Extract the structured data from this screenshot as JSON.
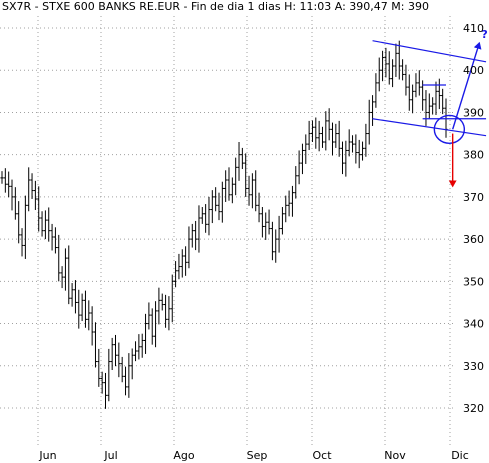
{
  "header": "SX7R - STXE 600 BANKS RE.EUR - Fin de dia 1 dias  H: 11:03  A: 390,47  M: 390",
  "annotation": {
    "question_mark": "?",
    "up_color": "#1a1ae6",
    "down_color": "#e60000",
    "line_color": "#1a1ae6"
  },
  "chart_data": {
    "type": "ohlc",
    "title": "SX7R - STXE 600 BANKS RE.EUR - Fin de dia 1 dias",
    "header_values": {
      "H": "11:03",
      "A": "390,47",
      "M": "390"
    },
    "ylim": [
      313,
      412
    ],
    "y_ticks": [
      "320",
      "330",
      "340",
      "350",
      "360",
      "370",
      "380",
      "390",
      "400",
      "410"
    ],
    "x_ticks": [
      "Jun",
      "Jul",
      "Ago",
      "Sep",
      "Oct",
      "Nov",
      "Dic"
    ],
    "grid": true,
    "series": [
      {
        "closes": [
          374.5,
          373.0,
          372.5,
          370.0,
          366.0,
          361.0,
          358.5,
          368.0,
          374.0,
          371.5,
          369.5,
          365.0,
          362.0,
          364.5,
          362.0,
          360.5,
          358.0,
          352.0,
          351.0,
          355.5,
          346.0,
          348.0,
          345.0,
          342.0,
          345.5,
          341.0,
          342.5,
          338.0,
          331.0,
          327.0,
          326.0,
          323.0,
          331.0,
          335.0,
          332.5,
          330.5,
          327.5,
          325.0,
          330.0,
          332.5,
          333.5,
          334.5,
          336.0,
          340.0,
          342.0,
          337.0,
          343.0,
          345.5,
          344.5,
          341.0,
          343.5,
          350.0,
          352.5,
          353.5,
          356.0,
          354.5,
          360.0,
          362.0,
          360.0,
          365.0,
          366.0,
          363.5,
          367.0,
          370.0,
          368.0,
          366.5,
          372.0,
          374.0,
          370.5,
          373.0,
          377.0,
          380.0,
          378.0,
          372.0,
          370.5,
          374.0,
          368.0,
          366.0,
          363.0,
          364.0,
          362.5,
          357.0,
          360.0,
          362.5,
          366.0,
          368.0,
          368.5,
          371.0,
          375.0,
          378.0,
          381.0,
          382.5,
          385.0,
          386.5,
          384.0,
          385.0,
          383.0,
          388.0,
          386.0,
          383.0,
          385.0,
          381.5,
          378.0,
          381.0,
          383.0,
          382.5,
          380.5,
          380.0,
          381.5,
          385.0,
          390.0,
          392.5,
          397.0,
          400.0,
          403.0,
          401.5,
          398.0,
          401.0,
          404.0,
          401.0,
          399.0,
          396.0,
          393.0,
          395.0,
          397.0,
          396.0,
          393.0,
          390.0,
          391.5,
          392.0,
          395.0,
          394.0,
          391.0,
          386.0
        ]
      }
    ],
    "trendlines": [
      {
        "from": [
          111,
          407.0
        ],
        "to": [
          145,
          402.0
        ]
      },
      {
        "from": [
          111,
          388.5
        ],
        "to": [
          145,
          384.5
        ]
      },
      {
        "from": [
          126,
          396.5
        ],
        "to": [
          133,
          396.5
        ]
      },
      {
        "from": [
          126,
          388.5
        ],
        "to": [
          145,
          388.5
        ]
      }
    ],
    "arrows": [
      {
        "from": [
          135,
          386.0
        ],
        "to": [
          143,
          406.5
        ],
        "direction": "up"
      },
      {
        "from": [
          135,
          385.0
        ],
        "to": [
          135,
          372.5
        ],
        "direction": "down"
      }
    ],
    "circle": {
      "center": [
        134,
        386.0
      ],
      "radius_data": 3.3
    }
  }
}
